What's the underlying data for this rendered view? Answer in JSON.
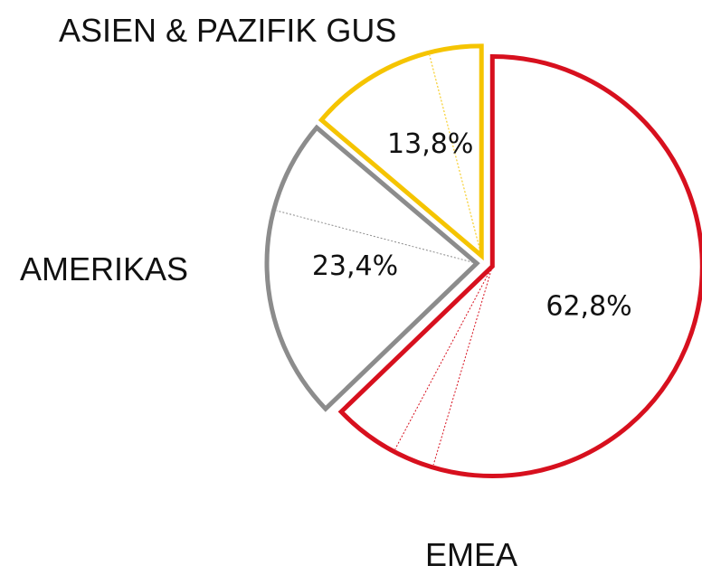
{
  "chart_data": {
    "type": "pie",
    "categories": [
      "EMEA",
      "AMERIKAS",
      "ASIEN & PAZIFIK GUS"
    ],
    "values": [
      62.8,
      23.4,
      13.8
    ],
    "value_labels": [
      "62,8%",
      "23,4%",
      "13,8%"
    ],
    "colors": [
      "#d7101e",
      "#8c8c8c",
      "#f5c400"
    ]
  }
}
